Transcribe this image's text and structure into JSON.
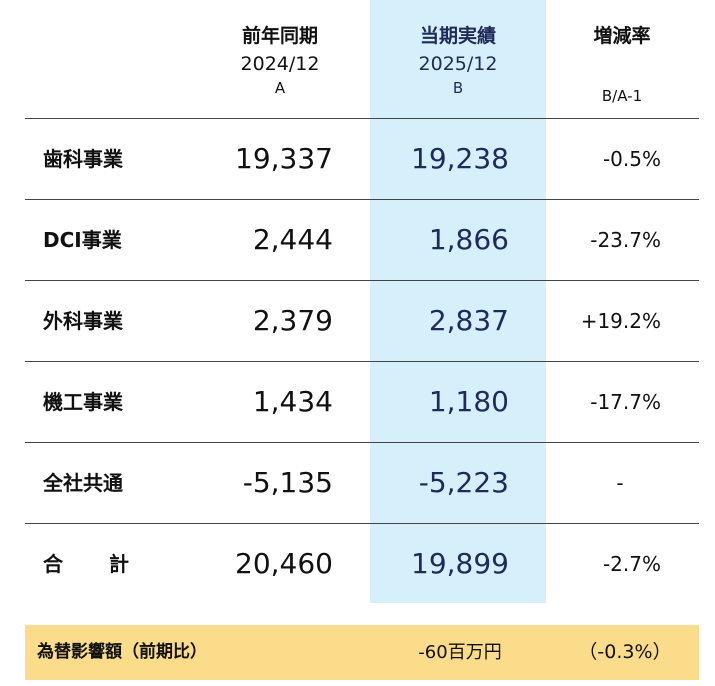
{
  "header": {
    "col_a": {
      "title": "前年同期",
      "period": "2024/12",
      "code": "A"
    },
    "col_b": {
      "title": "当期実績",
      "period": "2025/12",
      "code": "B"
    },
    "col_rate": {
      "title": "増減率",
      "code": "B/A-1"
    }
  },
  "rows": [
    {
      "name": "歯科事業",
      "a": "19,337",
      "b": "19,238",
      "rate": "-0.5%"
    },
    {
      "name": "DCI事業",
      "a": "2,444",
      "b": "1,866",
      "rate": "-23.7%"
    },
    {
      "name": "外科事業",
      "a": "2,379",
      "b": "2,837",
      "rate": "+19.2%"
    },
    {
      "name": "機工事業",
      "a": "1,434",
      "b": "1,180",
      "rate": "-17.7%"
    },
    {
      "name": "全社共通",
      "a": "-5,135",
      "b": "-5,223",
      "rate": "-"
    },
    {
      "name": "合計",
      "a": "20,460",
      "b": "19,899",
      "rate": "-2.7%"
    }
  ],
  "footer": {
    "label": "為替影響額（前期比）",
    "value": "-60百万円",
    "rate": "（-0.3%）"
  },
  "colors": {
    "highlight_column": "#d6f0fb",
    "footer_background": "#fadc8a",
    "current_period_text": "#1f2a5a"
  }
}
